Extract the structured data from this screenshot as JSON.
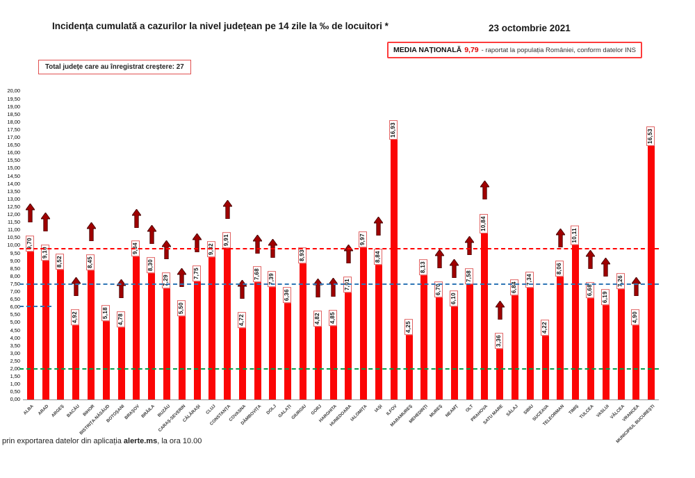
{
  "header": {
    "title": "Incidența cumulată a cazurilor la nivel județean pe 14 zile la ‰ de locuitori *",
    "date": "23 octombrie 2021",
    "national_average": {
      "label": "MEDIA NAȚIONALĂ",
      "value": "9,79",
      "suffix": "-  raportat la populația României, conform datelor INS"
    },
    "increase_box": "Total județe care au înregistrat creștere:  27"
  },
  "footer": {
    "prefix": "prin exportarea datelor din aplicația ",
    "bold": "alerte.ms",
    "suffix": ", la ora 10.00"
  },
  "chart_data": {
    "type": "bar",
    "title": "Incidența cumulată a cazurilor la nivel județean pe 14 zile la ‰ de locuitori",
    "unit": "‰",
    "ylabel": "",
    "xlabel": "",
    "y_axis": {
      "min": 0,
      "max": 20,
      "step": 0.5,
      "decimal_separator": ","
    },
    "bar_color": "#fb0505",
    "arrow_color": "#a00000",
    "increase_total": 27,
    "legend_position": "none",
    "grid": false,
    "reference_lines": [
      {
        "name": "media-nationala-line",
        "value": 9.79,
        "color": "#ff0000",
        "style": "dashed",
        "short_segment": false
      },
      {
        "name": "threshold-blue-line",
        "value": 7.5,
        "color": "#2e75b6",
        "style": "dashed",
        "short_segment": false
      },
      {
        "name": "threshold-green-line",
        "value": 2.0,
        "color": "#00a14b",
        "style": "dashed",
        "short_segment": false
      },
      {
        "name": "blue-short-marker",
        "value": 6.05,
        "color": "#2e75b6",
        "style": "dashed",
        "short_segment": true
      }
    ],
    "counties": [
      {
        "name": "ALBA",
        "label": "9,70",
        "value": 9.7,
        "increase": true
      },
      {
        "name": "ARAD",
        "label": "9,10",
        "value": 9.1,
        "increase": true
      },
      {
        "name": "ARGEȘ",
        "label": "8,52",
        "value": 8.52,
        "increase": false
      },
      {
        "name": "BACĂU",
        "label": "4,92",
        "value": 4.92,
        "increase": true
      },
      {
        "name": "BIHOR",
        "label": "8,45",
        "value": 8.45,
        "increase": true
      },
      {
        "name": "BISTRIȚA-NĂSĂUD",
        "label": "5,18",
        "value": 5.18,
        "increase": false
      },
      {
        "name": "BOTOȘANI",
        "label": "4,78",
        "value": 4.78,
        "increase": true
      },
      {
        "name": "BRAȘOV",
        "label": "9,34",
        "value": 9.34,
        "increase": true
      },
      {
        "name": "BRĂILA",
        "label": "8,30",
        "value": 8.3,
        "increase": true
      },
      {
        "name": "BUZĂU",
        "label": "7,29",
        "value": 7.29,
        "increase": true
      },
      {
        "name": "CARAȘ-SEVERIN",
        "label": "5,50",
        "value": 5.5,
        "increase": true
      },
      {
        "name": "CĂLĂRAȘI",
        "label": "7,75",
        "value": 7.75,
        "increase": true
      },
      {
        "name": "CLUJ",
        "label": "9,32",
        "value": 9.32,
        "increase": false
      },
      {
        "name": "CONSTANȚA",
        "label": "9,91",
        "value": 9.91,
        "increase": true
      },
      {
        "name": "COVASNA",
        "label": "4,72",
        "value": 4.72,
        "increase": true
      },
      {
        "name": "DÂMBOVIȚA",
        "label": "7,68",
        "value": 7.68,
        "increase": true
      },
      {
        "name": "DOLJ",
        "label": "7,39",
        "value": 7.39,
        "increase": true
      },
      {
        "name": "GALAȚI",
        "label": "6,36",
        "value": 6.36,
        "increase": false
      },
      {
        "name": "GIURGIU",
        "label": "8,93",
        "value": 8.93,
        "increase": false
      },
      {
        "name": "GORJ",
        "label": "4,82",
        "value": 4.82,
        "increase": true
      },
      {
        "name": "HARGHITA",
        "label": "4,85",
        "value": 4.85,
        "increase": true
      },
      {
        "name": "HUNEDOARA",
        "label": "7,01",
        "value": 7.01,
        "increase": true
      },
      {
        "name": "IALOMIȚA",
        "label": "9,97",
        "value": 9.97,
        "increase": false
      },
      {
        "name": "IAȘI",
        "label": "8,84",
        "value": 8.84,
        "increase": true
      },
      {
        "name": "ILFOV",
        "label": "16,93",
        "value": 16.93,
        "increase": false
      },
      {
        "name": "MARAMUREȘ",
        "label": "4,25",
        "value": 4.25,
        "increase": false
      },
      {
        "name": "MEHEDINȚI",
        "label": "8,13",
        "value": 8.13,
        "increase": false
      },
      {
        "name": "MUREȘ",
        "label": "6,70",
        "value": 6.7,
        "increase": true
      },
      {
        "name": "NEAMȚ",
        "label": "6,10",
        "value": 6.1,
        "increase": true
      },
      {
        "name": "OLT",
        "label": "7,58",
        "value": 7.58,
        "increase": true
      },
      {
        "name": "PRAHOVA",
        "label": "10,84",
        "value": 10.84,
        "increase": true
      },
      {
        "name": "SATU MARE",
        "label": "3,36",
        "value": 3.36,
        "increase": true
      },
      {
        "name": "SĂLAJ",
        "label": "6,84",
        "value": 6.84,
        "increase": false
      },
      {
        "name": "SIBIU",
        "label": "7,34",
        "value": 7.34,
        "increase": false
      },
      {
        "name": "SUCEAVA",
        "label": "4,22",
        "value": 4.22,
        "increase": false
      },
      {
        "name": "TELEORMAN",
        "label": "8,06",
        "value": 8.06,
        "increase": true
      },
      {
        "name": "TIMIȘ",
        "label": "10,11",
        "value": 10.11,
        "increase": false
      },
      {
        "name": "TULCEA",
        "label": "6,68",
        "value": 6.68,
        "increase": true
      },
      {
        "name": "VASLUI",
        "label": "6,19",
        "value": 6.19,
        "increase": true
      },
      {
        "name": "VÂLCEA",
        "label": "7,26",
        "value": 7.26,
        "increase": false
      },
      {
        "name": "VRANCEA",
        "label": "4,90",
        "value": 4.9,
        "increase": true
      },
      {
        "name": "MUNICIPIUL BUCUREȘTI",
        "label": "16,53",
        "value": 16.53,
        "increase": false
      }
    ]
  }
}
